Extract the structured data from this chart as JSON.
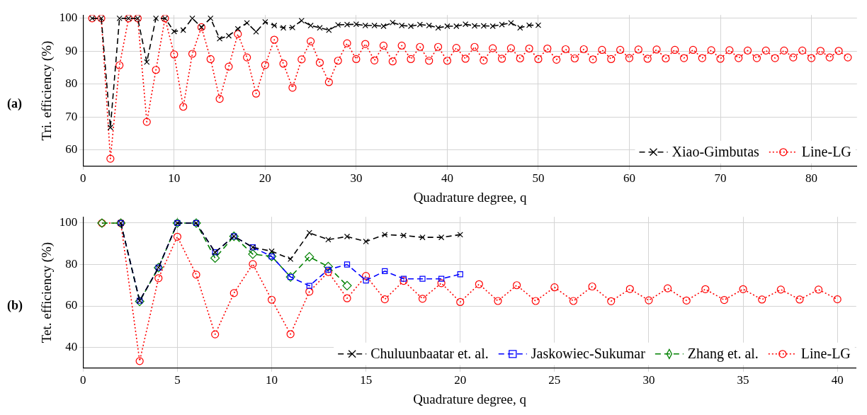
{
  "chart_data": [
    {
      "type": "line",
      "xlabel": "Quadrature degree, q",
      "ylabel": "Tri. efficiency (%)",
      "annotations": [
        "(a)"
      ],
      "xlim": [
        0,
        85
      ],
      "xticks": [
        0,
        10,
        20,
        30,
        40,
        50,
        60,
        70,
        80
      ],
      "ylim": [
        55,
        101
      ],
      "yticks": [
        60,
        70,
        80,
        90,
        100
      ],
      "grid": true,
      "legend": "bottom right",
      "series": [
        {
          "name": "Xiao-Gimbutas",
          "color": "#000000",
          "marker": "cross",
          "line_style": "dashed",
          "x": [
            1,
            2,
            3,
            4,
            5,
            6,
            7,
            8,
            9,
            10,
            11,
            12,
            13,
            14,
            15,
            16,
            17,
            18,
            19,
            20,
            21,
            22,
            23,
            24,
            25,
            26,
            27,
            28,
            29,
            30,
            31,
            32,
            33,
            34,
            35,
            36,
            37,
            38,
            39,
            40,
            41,
            42,
            43,
            44,
            45,
            46,
            47,
            48,
            49,
            50
          ],
          "values": [
            100,
            100,
            66.8,
            100,
            100,
            100,
            86.7,
            100,
            100,
            96.0,
            96.4,
            100,
            97.3,
            100,
            93.8,
            94.7,
            96.8,
            98.6,
            95.9,
            98.9,
            97.8,
            97.1,
            97.2,
            99.3,
            97.8,
            97.1,
            96.4,
            98.0,
            98.1,
            98.2,
            97.8,
            97.8,
            97.6,
            98.7,
            97.8,
            97.6,
            98.1,
            97.8,
            97.1,
            97.6,
            97.6,
            98.2,
            97.7,
            97.7,
            97.6,
            98.1,
            98.6,
            97.1,
            97.9,
            97.9
          ]
        },
        {
          "name": "Line-LG",
          "color": "#ff0000",
          "marker": "circle",
          "line_style": "dotted",
          "x": [
            1,
            2,
            3,
            4,
            5,
            6,
            7,
            8,
            9,
            10,
            11,
            12,
            13,
            14,
            15,
            16,
            17,
            18,
            19,
            20,
            21,
            22,
            23,
            24,
            25,
            26,
            27,
            28,
            29,
            30,
            31,
            32,
            33,
            34,
            35,
            36,
            37,
            38,
            39,
            40,
            41,
            42,
            43,
            44,
            45,
            46,
            47,
            48,
            49,
            50,
            51,
            52,
            53,
            54,
            55,
            56,
            57,
            58,
            59,
            60,
            61,
            62,
            63,
            64,
            65,
            66,
            67,
            68,
            69,
            70,
            71,
            72,
            73,
            74,
            75,
            76,
            77,
            78,
            79,
            80,
            81,
            82,
            83,
            84
          ],
          "values": [
            100,
            100,
            57.3,
            85.7,
            100,
            100,
            68.5,
            84.3,
            100,
            89.0,
            73.1,
            89.2,
            97.3,
            87.6,
            75.5,
            85.3,
            95.2,
            88.1,
            77.1,
            85.8,
            93.5,
            86.2,
            78.9,
            87.5,
            93.0,
            86.5,
            80.6,
            87.1,
            92.4,
            87.6,
            92.2,
            87.2,
            91.7,
            86.9,
            91.7,
            87.6,
            91.3,
            87.1,
            91.3,
            87.1,
            91.0,
            87.7,
            91.3,
            87.2,
            90.9,
            87.7,
            90.9,
            87.8,
            90.8,
            87.6,
            90.8,
            87.4,
            90.6,
            87.8,
            90.6,
            87.5,
            90.4,
            87.6,
            90.4,
            87.9,
            90.5,
            87.7,
            90.5,
            87.8,
            90.4,
            87.9,
            90.4,
            87.9,
            90.3,
            87.7,
            90.3,
            87.9,
            90.2,
            87.9,
            90.2,
            87.9,
            90.2,
            88.1,
            90.2,
            87.9,
            90.1,
            88.1,
            90.1,
            88.1
          ]
        }
      ]
    },
    {
      "type": "line",
      "xlabel": "Quadrature degree, q",
      "ylabel": "Tet. efficiency (%)",
      "annotations": [
        "(b)"
      ],
      "xlim": [
        0,
        41
      ],
      "xticks": [
        0,
        5,
        10,
        15,
        20,
        25,
        30,
        35,
        40
      ],
      "ylim": [
        30,
        103
      ],
      "yticks": [
        40,
        60,
        80,
        100
      ],
      "grid": true,
      "legend": "bottom right",
      "series": [
        {
          "name": "Chuluunbaatar et. al.",
          "color": "#000000",
          "marker": "cross",
          "line_style": "dashed",
          "x": [
            2,
            3,
            4,
            5,
            6,
            7,
            8,
            9,
            10,
            11,
            12,
            13,
            14,
            15,
            16,
            17,
            18,
            19,
            20
          ],
          "values": [
            100,
            62.5,
            78.5,
            100,
            100,
            85.9,
            93.6,
            88.3,
            86.4,
            82.6,
            95.3,
            92.0,
            93.5,
            91.1,
            94.4,
            94.0,
            93.1,
            93.1,
            94.4
          ]
        },
        {
          "name": "Jaskowiec-Sukumar",
          "color": "#0000ff",
          "marker": "square",
          "line_style": "dashed",
          "x": [
            2,
            3,
            4,
            5,
            6,
            7,
            8,
            9,
            10,
            11,
            12,
            13,
            14,
            15,
            16,
            17,
            18,
            19,
            20
          ],
          "values": [
            100,
            62.5,
            78.5,
            100,
            100,
            85.9,
            93.6,
            88.3,
            83.9,
            74.0,
            69.7,
            77.5,
            80.0,
            72.3,
            76.8,
            73.1,
            73.1,
            73.1,
            75.3
          ]
        },
        {
          "name": "Zhang et. al.",
          "color": "#008000",
          "marker": "diamond",
          "line_style": "dashed",
          "x": [
            1,
            2,
            3,
            4,
            5,
            6,
            7,
            8,
            9,
            10,
            11,
            12,
            13,
            14
          ],
          "values": [
            100,
            100,
            62.2,
            78.5,
            100,
            100,
            83.1,
            93.6,
            85.0,
            83.9,
            74.0,
            83.7,
            79.0,
            69.8
          ]
        },
        {
          "name": "Line-LG",
          "color": "#ff0000",
          "marker": "circle",
          "line_style": "dotted",
          "x": [
            1,
            2,
            3,
            4,
            5,
            6,
            7,
            8,
            9,
            10,
            11,
            12,
            13,
            14,
            15,
            16,
            17,
            18,
            19,
            20,
            21,
            22,
            23,
            24,
            25,
            26,
            27,
            28,
            29,
            30,
            31,
            32,
            33,
            34,
            35,
            36,
            37,
            38,
            39,
            40
          ],
          "values": [
            100,
            100,
            33.4,
            73.4,
            93.4,
            75.1,
            46.3,
            66.2,
            80.2,
            63.0,
            46.4,
            66.9,
            76.4,
            63.7,
            74.5,
            63.2,
            72.1,
            63.5,
            71.0,
            61.9,
            70.5,
            62.4,
            70.0,
            62.4,
            69.0,
            62.4,
            69.4,
            62.3,
            68.2,
            62.7,
            68.5,
            62.6,
            68.1,
            62.9,
            68.1,
            63.1,
            67.9,
            63.1,
            67.9,
            63.2
          ]
        }
      ]
    }
  ]
}
